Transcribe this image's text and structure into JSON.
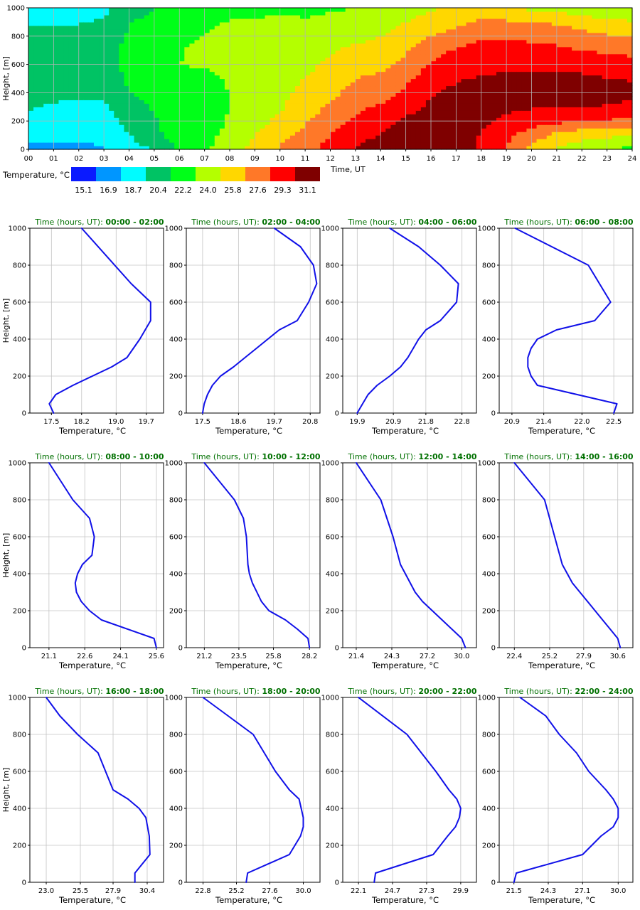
{
  "chart_data": [
    {
      "type": "heatmap",
      "xlabel": "Time, UT",
      "ylabel": "Height, [m]",
      "xticks": [
        "00",
        "01",
        "02",
        "03",
        "04",
        "05",
        "06",
        "07",
        "08",
        "09",
        "10",
        "11",
        "12",
        "13",
        "14",
        "15",
        "16",
        "17",
        "18",
        "19",
        "20",
        "21",
        "22",
        "23",
        "24"
      ],
      "xlim": [
        0,
        24
      ],
      "ylim": [
        0,
        1000
      ],
      "yticks": [
        0,
        200,
        400,
        600,
        800,
        1000
      ],
      "grid": true,
      "colorbar": {
        "label": "Temperature, °C",
        "colors": [
          "#0a1aff",
          "#0096ff",
          "#00fcff",
          "#00c364",
          "#00ff18",
          "#b4ff00",
          "#ffd700",
          "#ff7828",
          "#ff0000",
          "#7f0000"
        ],
        "tick_labels": [
          "15.1",
          "16.9",
          "18.7",
          "20.4",
          "22.2",
          "24.0",
          "25.8",
          "27.6",
          "29.3",
          "31.1"
        ]
      },
      "time_hours": [
        0,
        1,
        2,
        3,
        4,
        5,
        6,
        7,
        8,
        9,
        10,
        11,
        12,
        13,
        14,
        15,
        16,
        17,
        18,
        19,
        20,
        21,
        22,
        23,
        24
      ],
      "heights_m": [
        0,
        100,
        200,
        300,
        400,
        500,
        600,
        700,
        800,
        900,
        1000
      ],
      "approx_temperature_c": [
        [
          16.5,
          17.5,
          18.5,
          18.8,
          19.0,
          19.2,
          19.3,
          19.2,
          19.0,
          18.6,
          17.8
        ],
        [
          16.4,
          17.2,
          18.0,
          18.6,
          18.9,
          19.3,
          19.5,
          19.4,
          19.1,
          18.5,
          17.5
        ],
        [
          16.6,
          17.1,
          17.8,
          18.5,
          18.9,
          19.3,
          19.6,
          19.6,
          19.2,
          18.6,
          17.7
        ],
        [
          16.8,
          17.2,
          17.8,
          18.4,
          18.9,
          19.3,
          19.6,
          19.6,
          19.4,
          18.9,
          18.3
        ],
        [
          18.2,
          18.6,
          19.4,
          19.9,
          20.3,
          20.7,
          21.0,
          20.9,
          20.6,
          20.3,
          19.6
        ],
        [
          18.6,
          19.8,
          20.2,
          20.5,
          20.8,
          21.2,
          21.8,
          21.8,
          21.4,
          20.9,
          20.4
        ],
        [
          20.6,
          21.4,
          21.6,
          21.5,
          21.8,
          22.0,
          22.2,
          22.1,
          21.8,
          21.2,
          20.7
        ],
        [
          22.0,
          21.5,
          21.3,
          21.2,
          21.4,
          21.8,
          22.3,
          22.6,
          22.3,
          21.8,
          21.0
        ],
        [
          23.2,
          22.8,
          22.4,
          22.2,
          22.2,
          22.4,
          22.8,
          23.0,
          22.8,
          22.3,
          21.6
        ],
        [
          24.6,
          24.0,
          23.4,
          22.8,
          22.6,
          22.8,
          23.0,
          23.2,
          22.8,
          22.4,
          21.6
        ],
        [
          26.0,
          25.2,
          24.4,
          23.8,
          23.6,
          23.6,
          23.6,
          23.4,
          23.0,
          22.6,
          21.8
        ],
        [
          27.0,
          26.4,
          25.6,
          25.0,
          24.4,
          24.0,
          23.6,
          23.4,
          22.8,
          22.4,
          21.8
        ],
        [
          28.2,
          27.6,
          27.0,
          26.0,
          25.4,
          24.8,
          24.4,
          23.8,
          23.2,
          22.6,
          22.0
        ],
        [
          29.4,
          28.8,
          28.0,
          27.2,
          26.4,
          25.8,
          25.0,
          24.4,
          23.6,
          23.0,
          22.2
        ],
        [
          30.0,
          29.4,
          28.8,
          27.8,
          27.0,
          26.2,
          25.4,
          24.6,
          24.0,
          23.2,
          22.4
        ],
        [
          30.8,
          30.2,
          29.6,
          28.8,
          28.0,
          27.2,
          26.4,
          25.6,
          24.8,
          24.0,
          23.2
        ],
        [
          31.0,
          30.4,
          29.8,
          29.6,
          29.2,
          28.6,
          27.8,
          26.8,
          25.8,
          24.8,
          23.8
        ],
        [
          30.2,
          30.0,
          29.8,
          29.8,
          29.6,
          29.2,
          28.6,
          27.8,
          26.6,
          25.4,
          24.2
        ],
        [
          29.0,
          29.2,
          29.6,
          29.8,
          29.6,
          29.4,
          28.8,
          28.2,
          27.4,
          26.2,
          24.8
        ],
        [
          27.4,
          28.0,
          29.0,
          29.6,
          29.8,
          29.6,
          29.0,
          28.2,
          27.4,
          26.0,
          24.4
        ],
        [
          25.4,
          26.8,
          28.4,
          29.4,
          29.8,
          29.6,
          29.0,
          28.2,
          27.2,
          25.8,
          23.6
        ],
        [
          23.8,
          25.2,
          28.0,
          29.4,
          29.8,
          29.6,
          29.0,
          28.0,
          27.0,
          25.6,
          23.4
        ],
        [
          23.0,
          24.6,
          27.6,
          29.4,
          29.8,
          29.6,
          28.8,
          27.6,
          26.4,
          25.0,
          23.0
        ],
        [
          22.4,
          24.4,
          27.4,
          29.2,
          29.8,
          29.4,
          28.4,
          27.4,
          26.0,
          24.4,
          22.4
        ],
        [
          21.6,
          23.8,
          27.2,
          29.0,
          29.6,
          29.2,
          28.2,
          27.2,
          25.8,
          24.2,
          22.2
        ]
      ]
    },
    {
      "type": "line",
      "title_prefix": "Time (hours, UT)",
      "title_range": "00:00 - 02:00",
      "xlabel": "Temperature, °C",
      "ylabel": "Height, [m]",
      "xlim": [
        17.0,
        20.1
      ],
      "ylim": [
        0,
        1000
      ],
      "xticks": [
        "17.5",
        "18.2",
        "19.0",
        "19.7"
      ],
      "yticks": [
        0,
        200,
        400,
        600,
        800,
        1000
      ],
      "series": [
        {
          "x": [
            17.55,
            17.45,
            17.6,
            18.0,
            18.45,
            18.9,
            19.25,
            19.55,
            19.8,
            19.8,
            19.35,
            18.2
          ],
          "y": [
            0,
            50,
            100,
            150,
            200,
            250,
            300,
            400,
            500,
            600,
            700,
            1000
          ]
        }
      ]
    },
    {
      "type": "line",
      "title_prefix": "Time (hours, UT)",
      "title_range": "02:00 - 04:00",
      "xlabel": "Temperature, °C",
      "ylabel": "Height, [m]",
      "xlim": [
        17.0,
        21.1
      ],
      "ylim": [
        0,
        1000
      ],
      "xticks": [
        "17.5",
        "18.6",
        "19.7",
        "20.8"
      ],
      "yticks": [
        0,
        200,
        400,
        600,
        800,
        1000
      ],
      "series": [
        {
          "x": [
            17.5,
            17.55,
            17.65,
            17.8,
            18.05,
            18.45,
            18.8,
            19.15,
            19.5,
            19.85,
            20.4,
            20.75,
            21.0,
            20.9,
            20.5,
            19.7
          ],
          "y": [
            0,
            50,
            100,
            150,
            200,
            250,
            300,
            350,
            400,
            450,
            500,
            600,
            700,
            800,
            900,
            1000
          ]
        }
      ]
    },
    {
      "type": "line",
      "title_prefix": "Time (hours, UT)",
      "title_range": "04:00 - 06:00",
      "xlabel": "Temperature, °C",
      "ylabel": "Height, [m]",
      "xlim": [
        19.5,
        23.2
      ],
      "ylim": [
        0,
        1000
      ],
      "xticks": [
        "19.9",
        "20.9",
        "21.8",
        "22.8"
      ],
      "yticks": [
        0,
        200,
        400,
        600,
        800,
        1000
      ],
      "series": [
        {
          "x": [
            19.9,
            20.05,
            20.2,
            20.45,
            20.8,
            21.1,
            21.3,
            21.45,
            21.6,
            21.8,
            22.2,
            22.65,
            22.7,
            22.2,
            21.6,
            20.8
          ],
          "y": [
            0,
            50,
            100,
            150,
            200,
            250,
            300,
            350,
            400,
            450,
            500,
            600,
            700,
            800,
            900,
            1000
          ]
        }
      ]
    },
    {
      "type": "line",
      "title_prefix": "Time (hours, UT)",
      "title_range": "06:00 - 08:00",
      "xlabel": "Temperature, °C",
      "ylabel": "Height, [m]",
      "xlim": [
        20.7,
        22.8
      ],
      "ylim": [
        0,
        1000
      ],
      "xticks": [
        "20.9",
        "21.4",
        "22.0",
        "22.5"
      ],
      "yticks": [
        0,
        200,
        400,
        600,
        800,
        1000
      ],
      "series": [
        {
          "x": [
            22.5,
            22.55,
            21.3,
            21.2,
            21.15,
            21.15,
            21.2,
            21.3,
            21.6,
            22.2,
            22.45,
            22.1,
            20.95
          ],
          "y": [
            0,
            50,
            150,
            200,
            250,
            300,
            350,
            400,
            450,
            500,
            600,
            800,
            1000
          ]
        }
      ]
    },
    {
      "type": "line",
      "title_prefix": "Time (hours, UT)",
      "title_range": "08:00 - 10:00",
      "xlabel": "Temperature, °C",
      "ylabel": "Height, [m]",
      "xlim": [
        20.3,
        25.9
      ],
      "ylim": [
        0,
        1000
      ],
      "xticks": [
        "21.1",
        "22.6",
        "24.1",
        "25.6"
      ],
      "yticks": [
        0,
        200,
        400,
        600,
        800,
        1000
      ],
      "series": [
        {
          "x": [
            25.6,
            25.5,
            23.3,
            22.8,
            22.45,
            22.25,
            22.2,
            22.3,
            22.5,
            22.9,
            23.0,
            22.8,
            22.1,
            21.1
          ],
          "y": [
            0,
            50,
            150,
            200,
            250,
            300,
            350,
            400,
            450,
            500,
            600,
            700,
            800,
            1000
          ]
        }
      ]
    },
    {
      "type": "line",
      "title_prefix": "Time (hours, UT)",
      "title_range": "10:00 - 12:00",
      "xlabel": "Temperature, °C",
      "ylabel": "Height, [m]",
      "xlim": [
        20.0,
        28.9
      ],
      "ylim": [
        0,
        1000
      ],
      "xticks": [
        "21.2",
        "23.5",
        "25.8",
        "28.2"
      ],
      "yticks": [
        0,
        200,
        400,
        600,
        800,
        1000
      ],
      "series": [
        {
          "x": [
            28.2,
            28.1,
            27.4,
            26.6,
            25.5,
            25.0,
            24.7,
            24.4,
            24.2,
            24.1,
            24.0,
            23.8,
            23.2,
            21.2
          ],
          "y": [
            0,
            50,
            100,
            150,
            200,
            250,
            300,
            350,
            400,
            450,
            600,
            700,
            800,
            1000
          ]
        }
      ]
    },
    {
      "type": "line",
      "title_prefix": "Time (hours, UT)",
      "title_range": "12:00 - 14:00",
      "xlabel": "Temperature, °C",
      "ylabel": "Height, [m]",
      "xlim": [
        20.3,
        31.2
      ],
      "ylim": [
        0,
        1000
      ],
      "xticks": [
        "21.4",
        "24.3",
        "27.2",
        "30.0"
      ],
      "yticks": [
        0,
        200,
        400,
        600,
        800,
        1000
      ],
      "series": [
        {
          "x": [
            30.3,
            30.0,
            29.2,
            28.4,
            27.6,
            26.8,
            26.2,
            25.8,
            25.4,
            25.0,
            24.4,
            23.4,
            21.4
          ],
          "y": [
            0,
            50,
            100,
            150,
            200,
            250,
            300,
            350,
            400,
            450,
            600,
            800,
            1000
          ]
        }
      ]
    },
    {
      "type": "line",
      "title_prefix": "Time (hours, UT)",
      "title_range": "14:00 - 16:00",
      "xlabel": "Temperature, °C",
      "ylabel": "Height, [m]",
      "xlim": [
        21.2,
        31.8
      ],
      "ylim": [
        0,
        1000
      ],
      "xticks": [
        "22.4",
        "25.2",
        "27.9",
        "30.6"
      ],
      "yticks": [
        0,
        200,
        400,
        600,
        800,
        1000
      ],
      "series": [
        {
          "x": [
            30.8,
            30.6,
            30.0,
            29.4,
            28.8,
            28.2,
            27.6,
            27.0,
            26.6,
            26.2,
            25.6,
            24.8,
            22.4
          ],
          "y": [
            0,
            50,
            100,
            150,
            200,
            250,
            300,
            350,
            400,
            450,
            600,
            800,
            1000
          ]
        }
      ]
    },
    {
      "type": "line",
      "title_prefix": "Time (hours, UT)",
      "title_range": "16:00 - 18:00",
      "xlabel": "Temperature, °C",
      "ylabel": "Height, [m]",
      "xlim": [
        21.8,
        31.6
      ],
      "ylim": [
        0,
        1000
      ],
      "xticks": [
        "23.0",
        "25.5",
        "27.9",
        "30.4"
      ],
      "yticks": [
        0,
        200,
        400,
        600,
        800,
        1000
      ],
      "series": [
        {
          "x": [
            29.5,
            29.5,
            30.6,
            30.55,
            30.3,
            29.8,
            29.0,
            27.9,
            26.8,
            25.3,
            24.0,
            23.0
          ],
          "y": [
            0,
            50,
            150,
            250,
            350,
            400,
            450,
            500,
            700,
            800,
            900,
            1000
          ]
        }
      ]
    },
    {
      "type": "line",
      "title_prefix": "Time (hours, UT)",
      "title_range": "18:00 - 20:00",
      "xlabel": "Temperature, °C",
      "ylabel": "Height, [m]",
      "xlim": [
        21.6,
        31.2
      ],
      "ylim": [
        0,
        1000
      ],
      "xticks": [
        "22.8",
        "25.2",
        "27.6",
        "30.0"
      ],
      "yticks": [
        0,
        200,
        400,
        600,
        800,
        1000
      ],
      "series": [
        {
          "x": [
            25.9,
            26.0,
            29.0,
            29.8,
            30.0,
            30.0,
            29.7,
            29.0,
            28.0,
            26.4,
            24.6,
            22.8
          ],
          "y": [
            0,
            50,
            150,
            250,
            300,
            350,
            450,
            500,
            600,
            800,
            900,
            1000
          ]
        }
      ]
    },
    {
      "type": "line",
      "title_prefix": "Time (hours, UT)",
      "title_range": "20:00 - 22:00",
      "xlabel": "Temperature, °C",
      "ylabel": "Height, [m]",
      "xlim": [
        20.9,
        31.1
      ],
      "ylim": [
        0,
        1000
      ],
      "xticks": [
        "22.1",
        "24.7",
        "27.3",
        "29.9"
      ],
      "yticks": [
        0,
        200,
        400,
        600,
        800,
        1000
      ],
      "series": [
        {
          "x": [
            23.3,
            23.4,
            27.8,
            28.9,
            29.5,
            29.8,
            29.9,
            29.6,
            29.0,
            28.0,
            25.8,
            22.1
          ],
          "y": [
            0,
            50,
            150,
            250,
            300,
            350,
            400,
            450,
            500,
            600,
            800,
            1000
          ]
        }
      ]
    },
    {
      "type": "line",
      "title_prefix": "Time (hours, UT)",
      "title_range": "22:00 - 24:00",
      "xlabel": "Temperature, °C",
      "ylabel": "Height, [m]",
      "xlim": [
        20.3,
        31.2
      ],
      "ylim": [
        0,
        1000
      ],
      "xticks": [
        "21.5",
        "24.3",
        "27.1",
        "30.0"
      ],
      "yticks": [
        0,
        200,
        400,
        600,
        800,
        1000
      ],
      "series": [
        {
          "x": [
            21.5,
            21.7,
            27.1,
            28.6,
            29.6,
            30.0,
            30.0,
            29.6,
            29.0,
            27.6,
            26.6,
            25.2,
            24.1,
            22.0
          ],
          "y": [
            0,
            50,
            150,
            250,
            300,
            350,
            400,
            450,
            500,
            600,
            700,
            800,
            900,
            1000
          ]
        }
      ]
    }
  ]
}
